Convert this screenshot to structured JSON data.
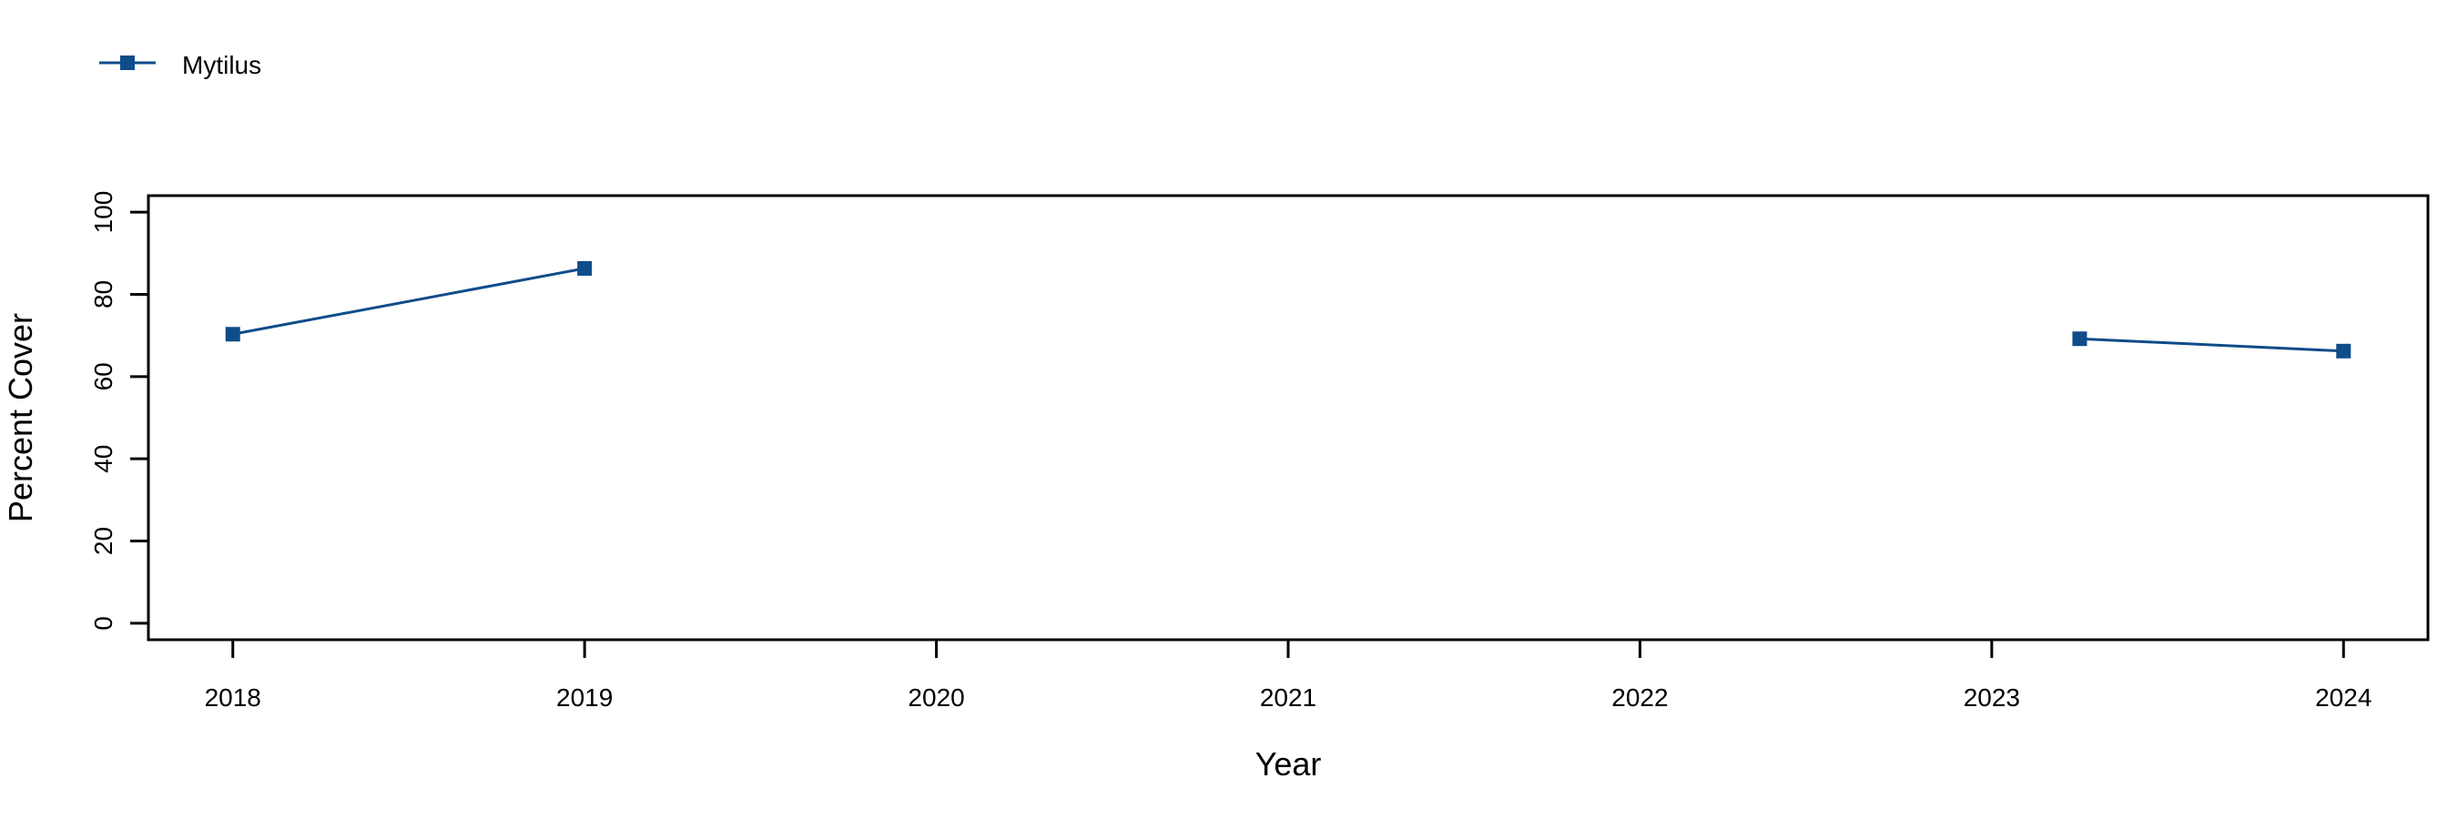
{
  "chart_data": {
    "type": "line",
    "title": "",
    "xlabel": "Year",
    "ylabel": "Percent Cover",
    "xlim": [
      2017.76,
      2024.24
    ],
    "ylim": [
      -4,
      104
    ],
    "x_ticks": [
      2018,
      2019,
      2020,
      2021,
      2022,
      2023,
      2024
    ],
    "y_ticks": [
      0,
      20,
      40,
      60,
      80,
      100
    ],
    "grid": false,
    "legend_position": "top-left",
    "series": [
      {
        "name": "Mytilus",
        "color": "#0f4c8a",
        "marker": "square",
        "segments": [
          [
            {
              "x": 2018,
              "y": 70.3
            },
            {
              "x": 2019,
              "y": 86.3
            }
          ],
          [
            {
              "x": 2023.25,
              "y": 69.2
            },
            {
              "x": 2024,
              "y": 66.2
            }
          ]
        ]
      }
    ]
  }
}
